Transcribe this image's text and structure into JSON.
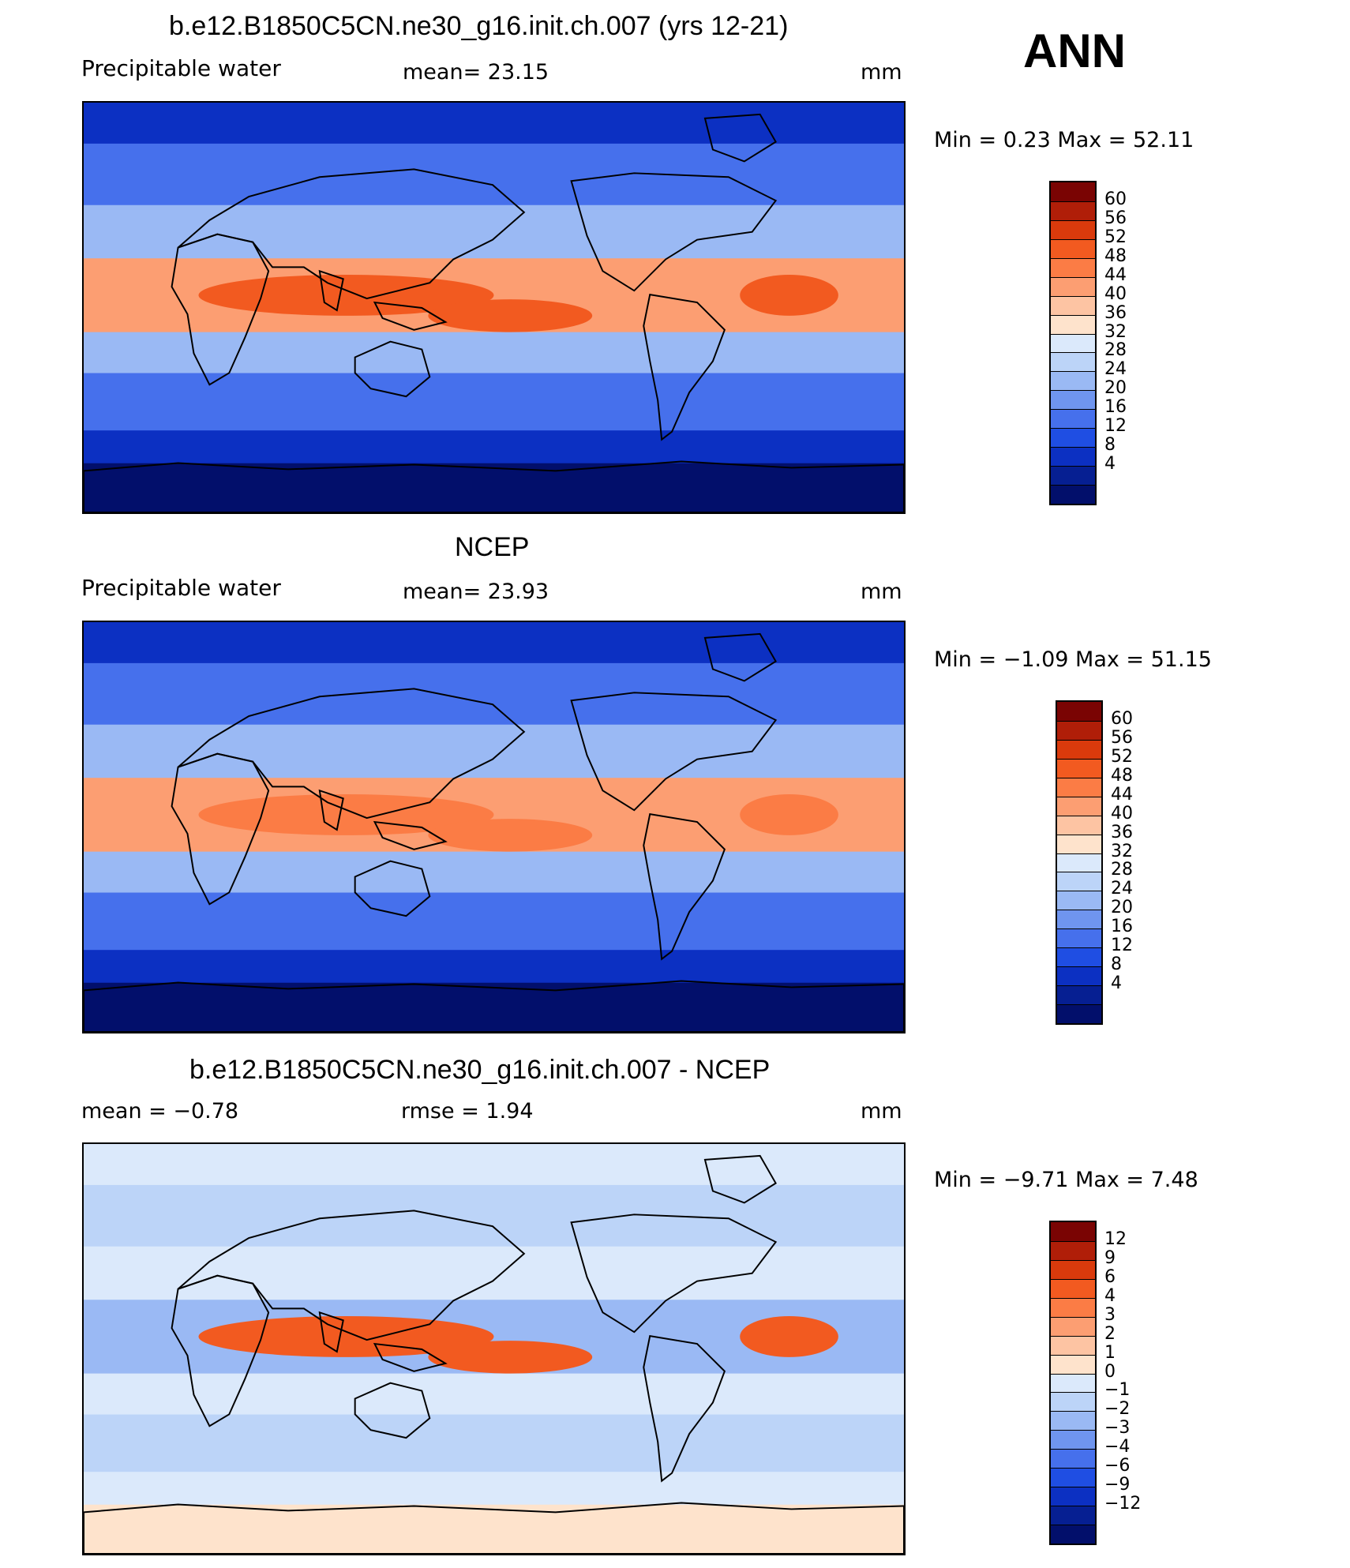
{
  "season": "ANN",
  "panels": [
    {
      "title": "b.e12.B1850C5CN.ne30_g16.init.ch.007 (yrs 12-21)",
      "left_label": "Precipitable  water",
      "center_label": "mean=   23.15",
      "right_label": "mm",
      "minmax": "Min  =     0.23  Max  =    52.11",
      "colorbar": {
        "colors": [
          "#7a0403",
          "#b01e08",
          "#da3a0c",
          "#f25a20",
          "#fb7c45",
          "#fc9e72",
          "#fdc4a3",
          "#fee3cc",
          "#dbe9fb",
          "#bcd4f8",
          "#9ab9f4",
          "#6f95ef",
          "#4670ec",
          "#1f4ee3",
          "#0c30c2",
          "#061f92",
          "#020f6b"
        ],
        "ticks": [
          "60",
          "56",
          "52",
          "48",
          "44",
          "40",
          "36",
          "32",
          "28",
          "24",
          "20",
          "16",
          "12",
          "8",
          "4"
        ]
      },
      "map_colors": {
        "polar": "#020f6b",
        "subpolar": "#0c30c2",
        "mid": "#4670ec",
        "subtrop": "#9ab9f4",
        "trop": "#fc9e72",
        "core": "#f25a20",
        "land": "#2a55d8"
      }
    },
    {
      "title": "NCEP",
      "left_label": "Precipitable  water",
      "center_label": "mean=   23.93",
      "right_label": "mm",
      "minmax": "Min  =   −1.09  Max  =    51.15",
      "colorbar": {
        "colors": [
          "#7a0403",
          "#b01e08",
          "#da3a0c",
          "#f25a20",
          "#fb7c45",
          "#fc9e72",
          "#fdc4a3",
          "#fee3cc",
          "#dbe9fb",
          "#bcd4f8",
          "#9ab9f4",
          "#6f95ef",
          "#4670ec",
          "#1f4ee3",
          "#0c30c2",
          "#061f92",
          "#020f6b"
        ],
        "ticks": [
          "60",
          "56",
          "52",
          "48",
          "44",
          "40",
          "36",
          "32",
          "28",
          "24",
          "20",
          "16",
          "12",
          "8",
          "4"
        ]
      },
      "map_colors": {
        "polar": "#020f6b",
        "subpolar": "#0c30c2",
        "mid": "#4670ec",
        "subtrop": "#9ab9f4",
        "trop": "#fc9e72",
        "core": "#fb7c45",
        "land": "#2a55d8"
      }
    },
    {
      "title": "b.e12.B1850C5CN.ne30_g16.init.ch.007 - NCEP",
      "left_label": "mean  =    −0.78",
      "center_label": "rmse  =      1.94",
      "right_label": "mm",
      "minmax": "Min  =   −9.71  Max  =     7.48",
      "colorbar": {
        "colors": [
          "#7a0403",
          "#b01e08",
          "#da3a0c",
          "#f25a20",
          "#fb7c45",
          "#fc9e72",
          "#fdc4a3",
          "#fee3cc",
          "#dbe9fb",
          "#bcd4f8",
          "#9ab9f4",
          "#6f95ef",
          "#4670ec",
          "#1f4ee3",
          "#0c30c2",
          "#061f92",
          "#020f6b"
        ],
        "ticks": [
          "12",
          "9",
          "6",
          "4",
          "3",
          "2",
          "1",
          "0",
          "−1",
          "−2",
          "−3",
          "−4",
          "−6",
          "−9",
          "−12"
        ]
      },
      "map_colors": {
        "polar": "#fee3cc",
        "subpolar": "#dbe9fb",
        "mid": "#bcd4f8",
        "subtrop": "#dbe9fb",
        "trop": "#9ab9f4",
        "core": "#f25a20",
        "land": "#bcd4f8"
      }
    }
  ]
}
